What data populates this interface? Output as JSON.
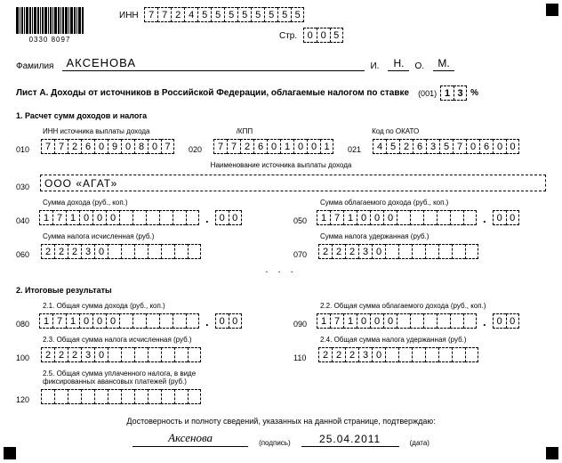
{
  "barcode_number": "0330 8097",
  "inn_label": "ИНН",
  "inn": [
    "7",
    "7",
    "2",
    "4",
    "5",
    "5",
    "5",
    "5",
    "5",
    "5",
    "5",
    "5"
  ],
  "page_label": "Стр.",
  "page": [
    "0",
    "0",
    "5"
  ],
  "surname_label": "Фамилия",
  "surname": "АКСЕНОВА",
  "initial_i_label": "И.",
  "initial_i": "Н.",
  "initial_o_label": "О.",
  "initial_o": "М.",
  "list_title": "Лист А. Доходы от источников в Российской Федерации, облагаемые налогом по ставке",
  "rate_code": "(001)",
  "rate": [
    "1",
    "3"
  ],
  "pct": "%",
  "s1_title": "1. Расчет сумм доходов и налога",
  "cap_inn_src": "ИНН источника выплаты дохода",
  "cap_kpp": "/КПП",
  "cap_okato": "Код по ОКАТО",
  "r010": "010",
  "v010": [
    "7",
    "7",
    "2",
    "6",
    "0",
    "9",
    "0",
    "8",
    "0",
    "7"
  ],
  "r020": "020",
  "v020": [
    "7",
    "7",
    "2",
    "6",
    "0",
    "1",
    "0",
    "0",
    "1"
  ],
  "r021": "021",
  "v021": [
    "4",
    "5",
    "2",
    "6",
    "3",
    "5",
    "7",
    "0",
    "6",
    "0",
    "0"
  ],
  "cap_payer": "Наименование источника выплаты дохода",
  "r030": "030",
  "payer_name": "ООО «АГАТ»",
  "cap_income": "Сумма дохода (руб., коп.)",
  "cap_taxable": "Сумма облагаемого дохода (руб., коп.)",
  "cap_tax_calc": "Сумма налога исчисленная (руб.)",
  "cap_tax_held": "Сумма налога удержанная (руб.)",
  "r040": "040",
  "v040a": [
    "1",
    "7",
    "1",
    "0",
    "0",
    "0",
    "",
    "",
    "",
    "",
    "",
    ""
  ],
  "v040b": [
    "0",
    "0"
  ],
  "r050": "050",
  "v050a": [
    "1",
    "7",
    "1",
    "0",
    "0",
    "0",
    "",
    "",
    "",
    "",
    "",
    ""
  ],
  "v050b": [
    "0",
    "0"
  ],
  "r060": "060",
  "v060": [
    "2",
    "2",
    "2",
    "3",
    "0",
    "",
    "",
    "",
    "",
    "",
    "",
    ""
  ],
  "r070": "070",
  "v070": [
    "2",
    "2",
    "2",
    "3",
    "0",
    "",
    "",
    "",
    "",
    "",
    "",
    ""
  ],
  "s2_title": "2. Итоговые результаты",
  "cap21": "2.1. Общая сумма дохода (руб., коп.)",
  "cap22": "2.2. Общая сумма облагаемого дохода (руб., коп.)",
  "cap23": "2.3. Общая сумма налога исчисленная (руб.)",
  "cap24": "2.4. Общая сумма налога удержанная (руб.)",
  "cap25": "2.5. Общая сумма уплаченного налога, в виде фиксированных авансовых платежей (руб.)",
  "r080": "080",
  "v080a": [
    "1",
    "7",
    "1",
    "0",
    "0",
    "0",
    "",
    "",
    "",
    "",
    "",
    ""
  ],
  "v080b": [
    "0",
    "0"
  ],
  "r090": "090",
  "v090a": [
    "1",
    "7",
    "1",
    "0",
    "0",
    "0",
    "",
    "",
    "",
    "",
    "",
    ""
  ],
  "v090b": [
    "0",
    "0"
  ],
  "r100": "100",
  "v100": [
    "2",
    "2",
    "2",
    "3",
    "0",
    "",
    "",
    "",
    "",
    "",
    "",
    ""
  ],
  "r110": "110",
  "v110": [
    "2",
    "2",
    "2",
    "3",
    "0",
    "",
    "",
    "",
    "",
    "",
    "",
    ""
  ],
  "r120": "120",
  "v120": [
    "",
    "",
    "",
    "",
    "",
    "",
    "",
    "",
    "",
    "",
    "",
    ""
  ],
  "footer_text": "Достоверность и полноту сведений, указанных на данной странице, подтверждаю:",
  "signature": "Аксенова",
  "sign_label": "(подпись)",
  "date": "25.04.2011",
  "date_label": "(дата)",
  "dots": ". . ."
}
